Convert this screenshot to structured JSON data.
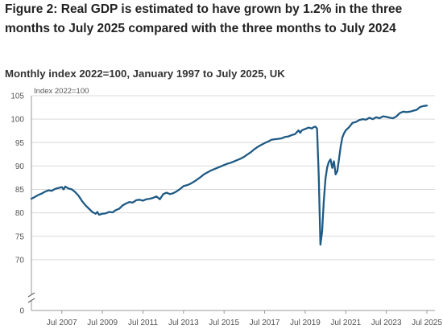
{
  "figure": {
    "title": "Figure 2: Real GDP is estimated to have grown by 1.2% in the three months to July 2025 compared with the three months to July 2024",
    "subtitle": "Monthly index 2022=100, January 1997 to July 2025, UK"
  },
  "colors": {
    "line": "#1f5a84",
    "grid": "#d9d9d9",
    "axis": "#999999"
  },
  "chart_data": {
    "type": "line",
    "title": "",
    "xlabel": "",
    "ylabel": "",
    "unit_label": "Index 2022=100",
    "grid": "horizontal",
    "legend": "none",
    "axis_break": true,
    "xlim": [
      "2006-01",
      "2025-07"
    ],
    "ylim": [
      65,
      105
    ],
    "y_ticks": [
      0,
      70,
      75,
      80,
      85,
      90,
      95,
      100,
      105
    ],
    "x_tick_labels": [
      "Jul 2007",
      "Jul 2009",
      "Jul 2011",
      "Jul 2013",
      "Jul 2015",
      "Jul 2017",
      "Jul 2019",
      "Jul 2021",
      "Jul 2023",
      "Jul 2025"
    ],
    "x_tick_dates": [
      "2007-07",
      "2009-07",
      "2011-07",
      "2013-07",
      "2015-07",
      "2017-07",
      "2019-07",
      "2021-07",
      "2023-07",
      "2025-07"
    ],
    "series": [
      {
        "values": [
          [
            "2006-01",
            83.0
          ],
          [
            "2006-03",
            83.4
          ],
          [
            "2006-05",
            83.8
          ],
          [
            "2006-07",
            84.1
          ],
          [
            "2006-09",
            84.5
          ],
          [
            "2006-11",
            84.8
          ],
          [
            "2007-01",
            84.7
          ],
          [
            "2007-03",
            85.1
          ],
          [
            "2007-05",
            85.3
          ],
          [
            "2007-07",
            85.5
          ],
          [
            "2007-08",
            85.0
          ],
          [
            "2007-09",
            85.6
          ],
          [
            "2007-11",
            85.2
          ],
          [
            "2008-01",
            85.0
          ],
          [
            "2008-03",
            84.4
          ],
          [
            "2008-05",
            83.6
          ],
          [
            "2008-07",
            82.5
          ],
          [
            "2008-09",
            81.6
          ],
          [
            "2008-11",
            80.9
          ],
          [
            "2009-01",
            80.2
          ],
          [
            "2009-03",
            79.8
          ],
          [
            "2009-04",
            80.2
          ],
          [
            "2009-05",
            79.6
          ],
          [
            "2009-07",
            79.8
          ],
          [
            "2009-09",
            79.9
          ],
          [
            "2009-11",
            80.2
          ],
          [
            "2010-01",
            80.1
          ],
          [
            "2010-03",
            80.6
          ],
          [
            "2010-05",
            80.9
          ],
          [
            "2010-07",
            81.6
          ],
          [
            "2010-09",
            82.0
          ],
          [
            "2010-11",
            82.3
          ],
          [
            "2011-01",
            82.2
          ],
          [
            "2011-03",
            82.7
          ],
          [
            "2011-05",
            82.8
          ],
          [
            "2011-07",
            82.6
          ],
          [
            "2011-09",
            82.9
          ],
          [
            "2011-11",
            83.0
          ],
          [
            "2012-01",
            83.2
          ],
          [
            "2012-03",
            83.5
          ],
          [
            "2012-05",
            82.9
          ],
          [
            "2012-07",
            84.0
          ],
          [
            "2012-09",
            84.3
          ],
          [
            "2012-11",
            84.0
          ],
          [
            "2013-01",
            84.2
          ],
          [
            "2013-03",
            84.6
          ],
          [
            "2013-05",
            85.1
          ],
          [
            "2013-07",
            85.7
          ],
          [
            "2013-09",
            85.9
          ],
          [
            "2013-11",
            86.2
          ],
          [
            "2014-01",
            86.6
          ],
          [
            "2014-03",
            87.1
          ],
          [
            "2014-05",
            87.6
          ],
          [
            "2014-07",
            88.2
          ],
          [
            "2014-09",
            88.6
          ],
          [
            "2014-11",
            89.0
          ],
          [
            "2015-01",
            89.3
          ],
          [
            "2015-03",
            89.6
          ],
          [
            "2015-05",
            89.9
          ],
          [
            "2015-07",
            90.2
          ],
          [
            "2015-09",
            90.5
          ],
          [
            "2015-11",
            90.7
          ],
          [
            "2016-01",
            91.0
          ],
          [
            "2016-03",
            91.3
          ],
          [
            "2016-05",
            91.6
          ],
          [
            "2016-07",
            92.0
          ],
          [
            "2016-09",
            92.5
          ],
          [
            "2016-11",
            93.0
          ],
          [
            "2017-01",
            93.6
          ],
          [
            "2017-03",
            94.1
          ],
          [
            "2017-05",
            94.5
          ],
          [
            "2017-07",
            94.9
          ],
          [
            "2017-09",
            95.2
          ],
          [
            "2017-11",
            95.6
          ],
          [
            "2018-01",
            95.7
          ],
          [
            "2018-03",
            95.8
          ],
          [
            "2018-05",
            95.9
          ],
          [
            "2018-07",
            96.2
          ],
          [
            "2018-09",
            96.3
          ],
          [
            "2018-11",
            96.6
          ],
          [
            "2019-01",
            96.8
          ],
          [
            "2019-03",
            97.6
          ],
          [
            "2019-04",
            97.1
          ],
          [
            "2019-05",
            97.6
          ],
          [
            "2019-07",
            97.9
          ],
          [
            "2019-09",
            98.2
          ],
          [
            "2019-11",
            98.0
          ],
          [
            "2019-12",
            98.3
          ],
          [
            "2020-01",
            98.4
          ],
          [
            "2020-02",
            98.0
          ],
          [
            "2020-03",
            88.0
          ],
          [
            "2020-04",
            73.2
          ],
          [
            "2020-05",
            76.0
          ],
          [
            "2020-06",
            82.5
          ],
          [
            "2020-07",
            87.3
          ],
          [
            "2020-08",
            89.7
          ],
          [
            "2020-09",
            90.9
          ],
          [
            "2020-10",
            91.4
          ],
          [
            "2020-11",
            89.6
          ],
          [
            "2020-12",
            91.0
          ],
          [
            "2021-01",
            88.2
          ],
          [
            "2021-02",
            88.9
          ],
          [
            "2021-03",
            91.5
          ],
          [
            "2021-04",
            94.2
          ],
          [
            "2021-05",
            96.1
          ],
          [
            "2021-06",
            97.0
          ],
          [
            "2021-07",
            97.6
          ],
          [
            "2021-09",
            98.3
          ],
          [
            "2021-11",
            99.2
          ],
          [
            "2022-01",
            99.4
          ],
          [
            "2022-03",
            99.8
          ],
          [
            "2022-05",
            100.0
          ],
          [
            "2022-07",
            99.9
          ],
          [
            "2022-09",
            100.3
          ],
          [
            "2022-11",
            100.0
          ],
          [
            "2023-01",
            100.4
          ],
          [
            "2023-03",
            100.2
          ],
          [
            "2023-05",
            100.6
          ],
          [
            "2023-07",
            100.5
          ],
          [
            "2023-09",
            100.3
          ],
          [
            "2023-11",
            100.2
          ],
          [
            "2024-01",
            100.6
          ],
          [
            "2024-03",
            101.3
          ],
          [
            "2024-05",
            101.6
          ],
          [
            "2024-07",
            101.5
          ],
          [
            "2024-09",
            101.6
          ],
          [
            "2024-11",
            101.8
          ],
          [
            "2025-01",
            102.0
          ],
          [
            "2025-03",
            102.6
          ],
          [
            "2025-05",
            102.8
          ],
          [
            "2025-07",
            102.9
          ]
        ]
      }
    ]
  }
}
